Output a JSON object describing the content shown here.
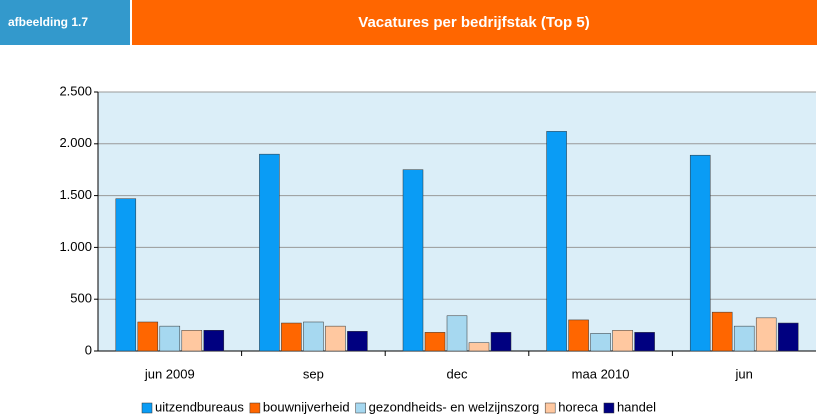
{
  "label": "afbeelding 1.7",
  "chart_data": {
    "type": "bar",
    "title": "Vacatures per bedrijfstak (Top 5)",
    "categories": [
      "jun 2009",
      "sep",
      "dec",
      "maa 2010",
      "jun"
    ],
    "series": [
      {
        "name": "uitzendbureaus",
        "color": "#0a9cf5",
        "values": [
          1470,
          1900,
          1750,
          2120,
          1890
        ]
      },
      {
        "name": "bouwnijverheid",
        "color": "#ff6600",
        "values": [
          280,
          270,
          180,
          300,
          375
        ]
      },
      {
        "name": "gezondheids- en welzijnszorg",
        "color": "#a6d8f0",
        "values": [
          240,
          280,
          340,
          170,
          240
        ]
      },
      {
        "name": "horeca",
        "color": "#ffc8a0",
        "values": [
          200,
          240,
          80,
          200,
          320
        ]
      },
      {
        "name": "handel",
        "color": "#000080",
        "values": [
          200,
          190,
          180,
          180,
          270
        ]
      }
    ],
    "ylim": [
      0,
      2500
    ],
    "yticks": [
      0,
      {
        "value": 500,
        "label": "500"
      },
      {
        "value": 1000,
        "label": "1.000"
      },
      {
        "value": 1500,
        "label": "1.500"
      },
      {
        "value": 2000,
        "label": "2.000"
      },
      {
        "value": 2500,
        "label": "2.500"
      }
    ],
    "grid": true,
    "legend": "bottom"
  }
}
